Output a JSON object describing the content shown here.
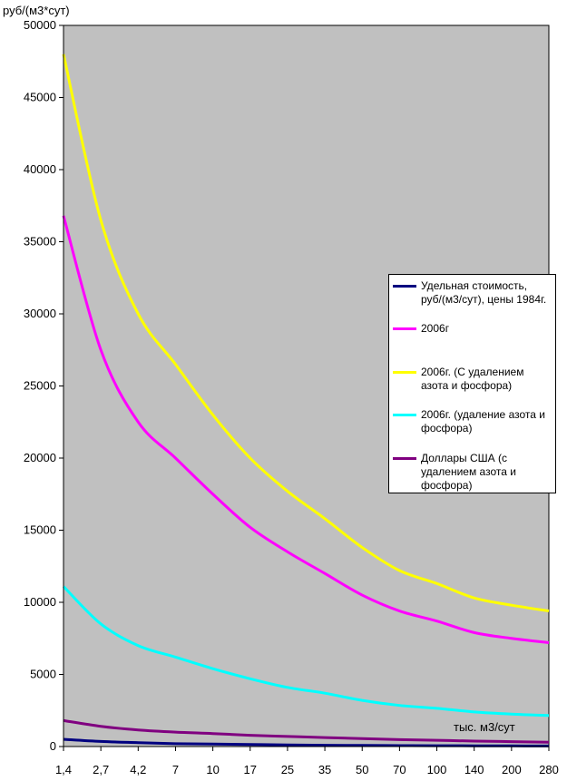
{
  "chart_data": {
    "type": "line",
    "ylabel": "руб/(м3*сут)",
    "xlabel": "тыс. м3/сут",
    "categories": [
      "1,4",
      "2,7",
      "4,2",
      "7",
      "10",
      "17",
      "25",
      "35",
      "50",
      "70",
      "100",
      "140",
      "200",
      "280"
    ],
    "ylim": [
      0,
      50000
    ],
    "yticks": [
      0,
      5000,
      10000,
      15000,
      20000,
      25000,
      30000,
      35000,
      40000,
      45000,
      50000
    ],
    "grid": false,
    "plot_background": "#c0c0c0",
    "legend_position": "right",
    "series": [
      {
        "name": "Удельная стоимость, руб/(м3/сут), цены 1984г.",
        "color": "#000080",
        "values": [
          500,
          350,
          270,
          200,
          170,
          140,
          110,
          90,
          75,
          65,
          55,
          50,
          45,
          40
        ]
      },
      {
        "name": "2006г",
        "color": "#ff00ff",
        "values": [
          36800,
          27500,
          22500,
          20000,
          17500,
          15200,
          13500,
          12000,
          10500,
          9400,
          8700,
          7900,
          7500,
          7200
        ]
      },
      {
        "name": "2006г. (С удалением азота и фосфора)",
        "color": "#ffff00",
        "values": [
          48000,
          36500,
          30000,
          26500,
          23000,
          20000,
          17700,
          15800,
          13800,
          12200,
          11300,
          10300,
          9800,
          9400
        ]
      },
      {
        "name": "2006г. (удаление азота и фосфора)",
        "color": "#00ffff",
        "values": [
          11100,
          8500,
          7000,
          6200,
          5400,
          4700,
          4100,
          3700,
          3200,
          2850,
          2650,
          2400,
          2250,
          2150
        ]
      },
      {
        "name": "Доллары США (с удалением азота и фосфора)",
        "color": "#800080",
        "values": [
          1800,
          1400,
          1150,
          1000,
          900,
          780,
          700,
          620,
          550,
          480,
          430,
          380,
          340,
          300
        ]
      }
    ]
  }
}
